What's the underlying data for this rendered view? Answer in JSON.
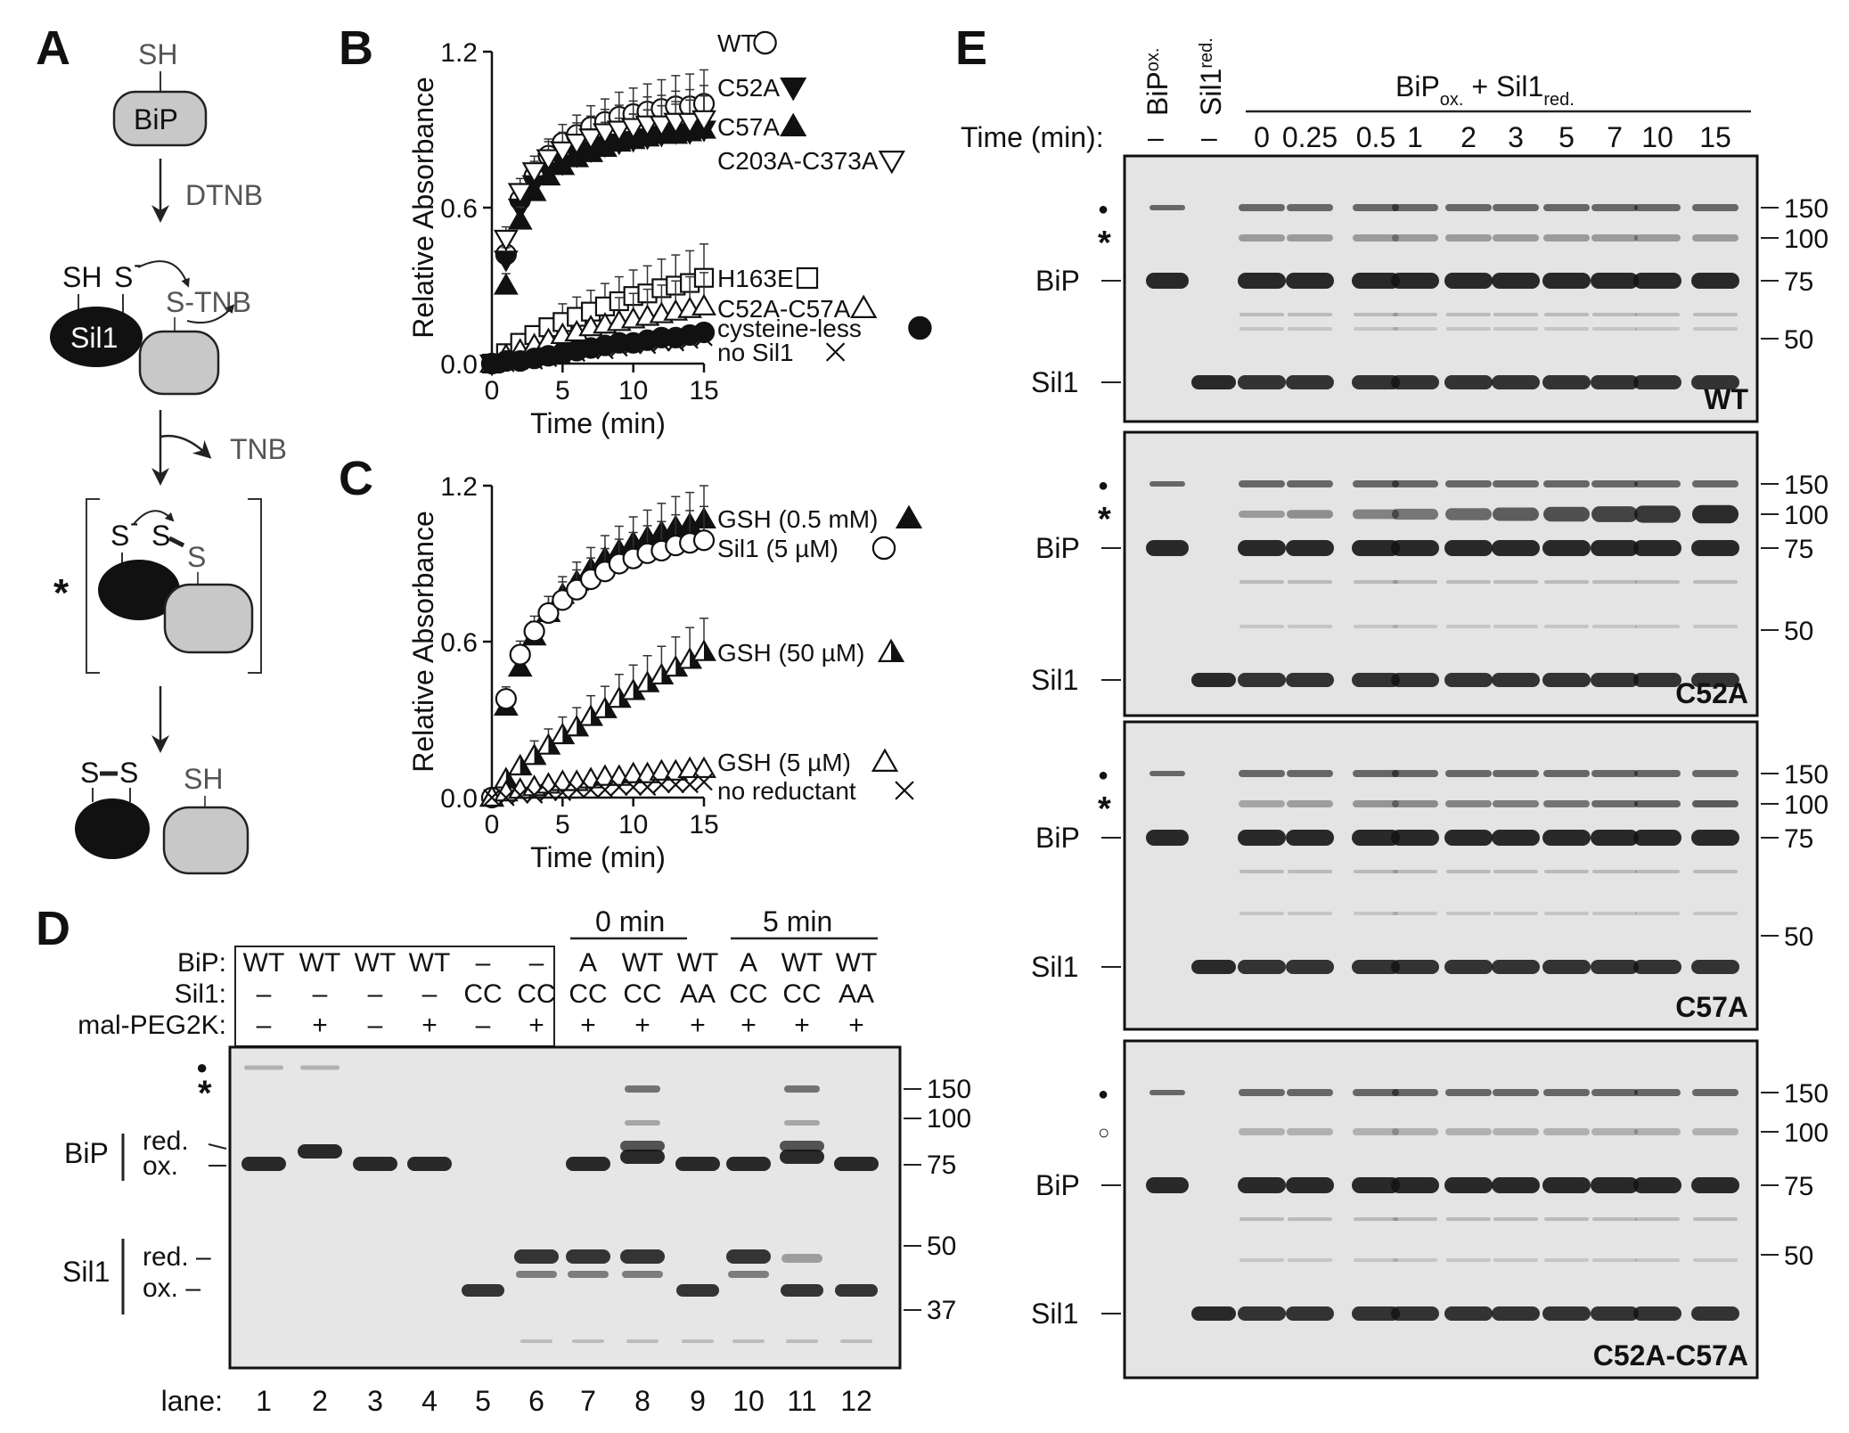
{
  "panels": {
    "A": {
      "label": "A",
      "bip_label": "BiP",
      "sh_top": "SH",
      "dtnb": "DTNB",
      "sh_left": "SH",
      "s_minus": "S",
      "minus": "-",
      "s_tnb": "S-TNB",
      "sil1_label": "Sil1",
      "tnb": "TNB",
      "star": "*",
      "int_s_minus": "S",
      "int_s1": "S",
      "int_s2": "S",
      "prod_s1": "S",
      "prod_s2": "S",
      "prod_sh": "SH"
    },
    "B": {
      "label": "B",
      "legend": [
        {
          "text": "WT",
          "symbol": "circle-open"
        },
        {
          "text": "C52A",
          "symbol": "tri-down-filled"
        },
        {
          "text": "C57A",
          "symbol": "tri-up-filled"
        },
        {
          "text": "C203A-C373A",
          "symbol": "tri-down-open"
        },
        {
          "text": "H163E",
          "symbol": "square-open"
        },
        {
          "text": "C52A-C57A",
          "symbol": "tri-up-open"
        },
        {
          "text": "cysteine-less",
          "symbol": "circle-filled"
        },
        {
          "text": "no Sil1",
          "symbol": "cross"
        }
      ]
    },
    "C": {
      "label": "C",
      "legend": [
        {
          "text": "GSH (0.5 mM)",
          "symbol": "tri-up-filled"
        },
        {
          "text": "Sil1 (5 µM)",
          "symbol": "circle-open"
        },
        {
          "text": "GSH (50 µM)",
          "symbol": "tri-up-half"
        },
        {
          "text": "GSH (5 µM)",
          "symbol": "tri-up-open"
        },
        {
          "text": "no reductant",
          "symbol": "cross"
        }
      ]
    },
    "D": {
      "label": "D",
      "row_labels": [
        "BiP:",
        "Sil1:",
        "mal-PEG2K:"
      ],
      "bip": [
        "WT",
        "WT",
        "WT",
        "WT",
        "–",
        "–",
        "A",
        "WT",
        "WT",
        "A",
        "WT",
        "WT"
      ],
      "sil1": [
        "–",
        "–",
        "–",
        "–",
        "CC",
        "CC",
        "CC",
        "CC",
        "AA",
        "CC",
        "CC",
        "AA"
      ],
      "peg": [
        "–",
        "+",
        "–",
        "+",
        "–",
        "+",
        "+",
        "+",
        "+",
        "+",
        "+",
        "+"
      ],
      "group_0": "0 min",
      "group_5": "5 min",
      "lanes_label": "lane:",
      "lanes": [
        "1",
        "2",
        "3",
        "4",
        "5",
        "6",
        "7",
        "8",
        "9",
        "10",
        "11",
        "12"
      ],
      "dot": "●",
      "star": "*",
      "bip_label": "BiP",
      "bip_red": "red.",
      "bip_ox": "ox.",
      "sil1_label": "Sil1",
      "sil1_red": "red. –",
      "sil1_ox": "ox. –",
      "markers": [
        "150",
        "100",
        "75",
        "50",
        "37"
      ]
    },
    "E": {
      "label": "E",
      "col_bip": "BiP",
      "col_bip_sub": "ox.",
      "col_sil1": "Sil1",
      "col_sil1_sub": "red.",
      "group_main1": "BiP",
      "group_sub1": "ox.",
      "group_plus": " + Sil1",
      "group_sub2": "red.",
      "time_label": "Time (min):",
      "dash1": "–",
      "dash2": "–",
      "times": [
        "0",
        "0.25",
        "0.5",
        "1",
        "2",
        "3",
        "5",
        "7",
        "10",
        "15"
      ],
      "gels": [
        {
          "name": "WT",
          "dot": "●",
          "mark2": "*",
          "bip": "BiP",
          "sil1": "Sil1",
          "markers": [
            "150",
            "100",
            "75",
            "50"
          ]
        },
        {
          "name": "C52A",
          "dot": "●",
          "mark2": "*",
          "bip": "BiP",
          "sil1": "Sil1",
          "markers": [
            "150",
            "100",
            "75",
            "50"
          ]
        },
        {
          "name": "C57A",
          "dot": "●",
          "mark2": "*",
          "bip": "BiP",
          "sil1": "Sil1",
          "markers": [
            "150",
            "100",
            "75",
            "50"
          ]
        },
        {
          "name": "C52A-C57A",
          "dot": "●",
          "mark2": "○",
          "bip": "BiP",
          "sil1": "Sil1",
          "markers": [
            "150",
            "100",
            "75",
            "50"
          ]
        }
      ]
    }
  },
  "chart_data": [
    {
      "panel": "B",
      "type": "scatter",
      "ylabel": "Relative Absorbance",
      "xlabel": "Time (min)",
      "xlim": [
        0,
        15
      ],
      "ylim": [
        0,
        1.2
      ],
      "xticks": [
        "0",
        "5",
        "10",
        "15"
      ],
      "yticks": [
        "0.0",
        "0.6",
        "1.2"
      ],
      "x": [
        0,
        1,
        2,
        3,
        4,
        5,
        6,
        7,
        8,
        9,
        10,
        11,
        12,
        13,
        14,
        15
      ],
      "series": [
        {
          "name": "WT",
          "symbol": "circle-open",
          "values": [
            0,
            0.42,
            0.63,
            0.72,
            0.8,
            0.85,
            0.88,
            0.91,
            0.93,
            0.95,
            0.96,
            0.97,
            0.98,
            0.99,
            0.99,
            1.0
          ]
        },
        {
          "name": "C52A",
          "symbol": "tri-down-filled",
          "values": [
            0,
            0.4,
            0.6,
            0.69,
            0.74,
            0.77,
            0.8,
            0.82,
            0.84,
            0.85,
            0.86,
            0.87,
            0.88,
            0.89,
            0.89,
            0.9
          ]
        },
        {
          "name": "C57A",
          "symbol": "tri-up-filled",
          "values": [
            0,
            0.3,
            0.55,
            0.66,
            0.72,
            0.76,
            0.79,
            0.81,
            0.83,
            0.85,
            0.86,
            0.87,
            0.88,
            0.88,
            0.89,
            0.9
          ]
        },
        {
          "name": "C203A-C373A",
          "symbol": "tri-down-open",
          "values": [
            0,
            0.48,
            0.66,
            0.74,
            0.79,
            0.82,
            0.85,
            0.87,
            0.89,
            0.9,
            0.91,
            0.92,
            0.92,
            0.93,
            0.93,
            0.94
          ]
        },
        {
          "name": "H163E",
          "symbol": "square-open",
          "values": [
            0,
            0.04,
            0.08,
            0.11,
            0.14,
            0.16,
            0.18,
            0.2,
            0.22,
            0.24,
            0.26,
            0.27,
            0.29,
            0.3,
            0.31,
            0.33
          ]
        },
        {
          "name": "C52A-C57A",
          "symbol": "tri-up-open",
          "values": [
            0,
            0.03,
            0.05,
            0.07,
            0.09,
            0.11,
            0.12,
            0.14,
            0.15,
            0.16,
            0.17,
            0.18,
            0.19,
            0.2,
            0.21,
            0.22
          ]
        },
        {
          "name": "cysteine-less",
          "symbol": "circle-filled",
          "values": [
            0,
            0.01,
            0.01,
            0.02,
            0.03,
            0.04,
            0.05,
            0.06,
            0.07,
            0.08,
            0.08,
            0.09,
            0.1,
            0.1,
            0.11,
            0.12
          ]
        },
        {
          "name": "no Sil1",
          "symbol": "cross",
          "values": [
            0,
            0.0,
            0.01,
            0.01,
            0.02,
            0.03,
            0.04,
            0.05,
            0.05,
            0.06,
            0.07,
            0.07,
            0.08,
            0.08,
            0.09,
            0.1
          ]
        }
      ]
    },
    {
      "panel": "C",
      "type": "scatter",
      "ylabel": "Relative Absorbance",
      "xlabel": "Time (min)",
      "xlim": [
        0,
        15
      ],
      "ylim": [
        0,
        1.2
      ],
      "xticks": [
        "0",
        "5",
        "10",
        "15"
      ],
      "yticks": [
        "0.0",
        "0.6",
        "1.2"
      ],
      "x": [
        0,
        1,
        2,
        3,
        4,
        5,
        6,
        7,
        8,
        9,
        10,
        11,
        12,
        13,
        14,
        15
      ],
      "series": [
        {
          "name": "GSH (0.5 mM)",
          "symbol": "tri-up-filled",
          "values": [
            0,
            0.35,
            0.5,
            0.62,
            0.71,
            0.78,
            0.83,
            0.88,
            0.92,
            0.95,
            0.98,
            1.0,
            1.02,
            1.04,
            1.05,
            1.07
          ]
        },
        {
          "name": "Sil1 (5 µM)",
          "symbol": "circle-open",
          "values": [
            0,
            0.38,
            0.55,
            0.64,
            0.71,
            0.76,
            0.8,
            0.84,
            0.87,
            0.9,
            0.92,
            0.94,
            0.95,
            0.97,
            0.98,
            0.99
          ]
        },
        {
          "name": "GSH (50 µM)",
          "symbol": "tri-up-half",
          "values": [
            0,
            0.07,
            0.12,
            0.16,
            0.2,
            0.24,
            0.27,
            0.31,
            0.34,
            0.38,
            0.41,
            0.44,
            0.47,
            0.5,
            0.53,
            0.56
          ]
        },
        {
          "name": "GSH (5 µM)",
          "symbol": "tri-up-open",
          "values": [
            0,
            0.02,
            0.03,
            0.04,
            0.05,
            0.06,
            0.06,
            0.07,
            0.08,
            0.08,
            0.09,
            0.09,
            0.1,
            0.1,
            0.11,
            0.11
          ]
        },
        {
          "name": "no reductant",
          "symbol": "cross",
          "values": [
            0,
            0.0,
            0.01,
            0.01,
            0.02,
            0.02,
            0.03,
            0.03,
            0.03,
            0.04,
            0.04,
            0.04,
            0.05,
            0.05,
            0.05,
            0.06
          ]
        }
      ]
    }
  ]
}
